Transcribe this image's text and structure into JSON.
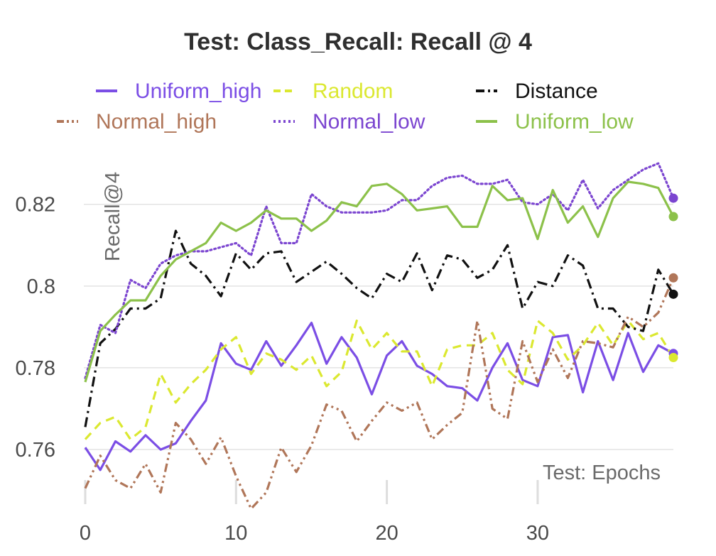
{
  "chart_data": {
    "type": "line",
    "title": "Test: Class_Recall: Recall @ 4",
    "xlabel": "Test: Epochs",
    "ylabel": "Recall@4",
    "xlim": [
      0,
      39
    ],
    "ylim": [
      0.7475,
      0.8335
    ],
    "x_ticks": [
      0,
      10,
      20,
      30
    ],
    "x_tick_labels": [
      "0",
      "10",
      "20",
      "30"
    ],
    "y_ticks": [
      0.76,
      0.78,
      0.8,
      0.82
    ],
    "y_tick_labels": [
      "0.76",
      "0.78",
      "0.8",
      "0.82"
    ],
    "grid": true,
    "legend_position": "top",
    "x": [
      0,
      1,
      2,
      3,
      4,
      5,
      6,
      7,
      8,
      9,
      10,
      11,
      12,
      13,
      14,
      15,
      16,
      17,
      18,
      19,
      20,
      21,
      22,
      23,
      24,
      25,
      26,
      27,
      28,
      29,
      30,
      31,
      32,
      33,
      34,
      35,
      36,
      37,
      38,
      39
    ],
    "series": [
      {
        "name": "Uniform_high",
        "color": "#7b4ee5",
        "dash": "solid",
        "values": [
          0.7605,
          0.755,
          0.762,
          0.7595,
          0.7635,
          0.76,
          0.7615,
          0.767,
          0.772,
          0.786,
          0.781,
          0.7795,
          0.7865,
          0.7805,
          0.7855,
          0.791,
          0.781,
          0.7875,
          0.7825,
          0.7735,
          0.783,
          0.7865,
          0.7805,
          0.7785,
          0.7755,
          0.775,
          0.772,
          0.78,
          0.786,
          0.777,
          0.7755,
          0.7875,
          0.788,
          0.774,
          0.7865,
          0.777,
          0.7885,
          0.779,
          0.7855,
          0.7835
        ]
      },
      {
        "name": "Random",
        "color": "#dbe830",
        "dash": "dashed",
        "values": [
          0.7625,
          0.7665,
          0.768,
          0.7625,
          0.7655,
          0.7785,
          0.7715,
          0.776,
          0.7795,
          0.7845,
          0.7875,
          0.7785,
          0.7835,
          0.782,
          0.7795,
          0.783,
          0.7755,
          0.779,
          0.7915,
          0.7845,
          0.7885,
          0.784,
          0.784,
          0.7755,
          0.7845,
          0.7855,
          0.7855,
          0.7885,
          0.7795,
          0.776,
          0.7915,
          0.7885,
          0.782,
          0.7855,
          0.791,
          0.7855,
          0.7915,
          0.787,
          0.7885,
          0.7825
        ]
      },
      {
        "name": "Distance",
        "color": "#111111",
        "dash": "dashdot",
        "values": [
          0.7655,
          0.786,
          0.7895,
          0.7945,
          0.7945,
          0.797,
          0.8135,
          0.8055,
          0.8025,
          0.7975,
          0.808,
          0.804,
          0.808,
          0.8085,
          0.801,
          0.8035,
          0.806,
          0.803,
          0.7995,
          0.797,
          0.803,
          0.801,
          0.808,
          0.799,
          0.8075,
          0.8065,
          0.802,
          0.804,
          0.81,
          0.7945,
          0.801,
          0.8,
          0.8075,
          0.805,
          0.7945,
          0.7945,
          0.79,
          0.789,
          0.804,
          0.798
        ]
      },
      {
        "name": "Normal_high",
        "color": "#b07659",
        "dash": "dashdotdot",
        "values": [
          0.7505,
          0.7585,
          0.7525,
          0.7505,
          0.7565,
          0.7495,
          0.7665,
          0.7625,
          0.7565,
          0.763,
          0.7535,
          0.7455,
          0.7495,
          0.7605,
          0.7545,
          0.761,
          0.771,
          0.7695,
          0.762,
          0.767,
          0.7715,
          0.7695,
          0.7715,
          0.7625,
          0.766,
          0.769,
          0.7915,
          0.77,
          0.7675,
          0.7865,
          0.7765,
          0.7845,
          0.7775,
          0.7865,
          0.786,
          0.785,
          0.7925,
          0.79,
          0.7935,
          0.802
        ]
      },
      {
        "name": "Normal_low",
        "color": "#7b45d0",
        "dash": "dotted",
        "values": [
          0.7775,
          0.7905,
          0.7885,
          0.8015,
          0.7995,
          0.8055,
          0.8075,
          0.8085,
          0.8085,
          0.8095,
          0.8105,
          0.8075,
          0.8195,
          0.8105,
          0.8105,
          0.8225,
          0.8195,
          0.818,
          0.818,
          0.818,
          0.8185,
          0.821,
          0.821,
          0.8245,
          0.8265,
          0.827,
          0.825,
          0.825,
          0.826,
          0.8205,
          0.82,
          0.8225,
          0.8185,
          0.826,
          0.819,
          0.8235,
          0.826,
          0.8285,
          0.83,
          0.8215
        ]
      },
      {
        "name": "Uniform_low",
        "color": "#8cc14a",
        "dash": "solid",
        "values": [
          0.7765,
          0.789,
          0.793,
          0.7965,
          0.7965,
          0.8025,
          0.8065,
          0.8085,
          0.8105,
          0.8155,
          0.8135,
          0.8155,
          0.8185,
          0.8165,
          0.8165,
          0.8135,
          0.816,
          0.8205,
          0.8195,
          0.8245,
          0.825,
          0.8225,
          0.8185,
          0.819,
          0.8195,
          0.8145,
          0.8145,
          0.8245,
          0.821,
          0.8215,
          0.8115,
          0.8235,
          0.8155,
          0.8195,
          0.812,
          0.8215,
          0.8255,
          0.825,
          0.824,
          0.817
        ]
      }
    ]
  }
}
